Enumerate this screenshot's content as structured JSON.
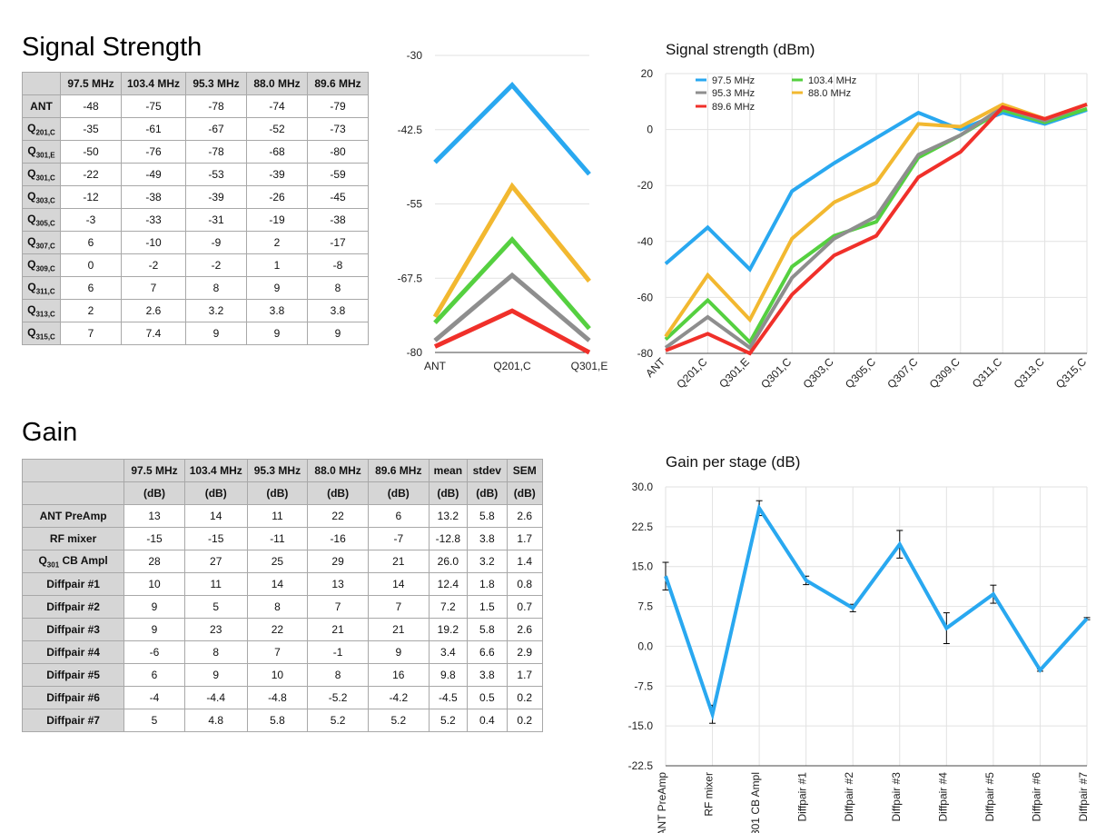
{
  "signal": {
    "title": "Signal Strength",
    "columns": [
      "97.5 MHz",
      "103.4 MHz",
      "95.3 MHz",
      "88.0 MHz",
      "89.6 MHz"
    ],
    "rows": [
      {
        "base": "ANT",
        "sub": "",
        "values": [
          "-48",
          "-75",
          "-78",
          "-74",
          "-79"
        ]
      },
      {
        "base": "Q",
        "sub": "201,C",
        "values": [
          "-35",
          "-61",
          "-67",
          "-52",
          "-73"
        ]
      },
      {
        "base": "Q",
        "sub": "301,E",
        "values": [
          "-50",
          "-76",
          "-78",
          "-68",
          "-80"
        ]
      },
      {
        "base": "Q",
        "sub": "301,C",
        "values": [
          "-22",
          "-49",
          "-53",
          "-39",
          "-59"
        ]
      },
      {
        "base": "Q",
        "sub": "303,C",
        "values": [
          "-12",
          "-38",
          "-39",
          "-26",
          "-45"
        ]
      },
      {
        "base": "Q",
        "sub": "305,C",
        "values": [
          "-3",
          "-33",
          "-31",
          "-19",
          "-38"
        ]
      },
      {
        "base": "Q",
        "sub": "307,C",
        "values": [
          "6",
          "-10",
          "-9",
          "2",
          "-17"
        ]
      },
      {
        "base": "Q",
        "sub": "309,C",
        "values": [
          "0",
          "-2",
          "-2",
          "1",
          "-8"
        ]
      },
      {
        "base": "Q",
        "sub": "311,C",
        "values": [
          "6",
          "7",
          "8",
          "9",
          "8"
        ]
      },
      {
        "base": "Q",
        "sub": "313,C",
        "values": [
          "2",
          "2.6",
          "3.2",
          "3.8",
          "3.8"
        ]
      },
      {
        "base": "Q",
        "sub": "315,C",
        "values": [
          "7",
          "7.4",
          "9",
          "9",
          "9"
        ]
      }
    ]
  },
  "gain": {
    "title": "Gain",
    "columns": [
      "97.5 MHz",
      "103.4 MHz",
      "95.3 MHz",
      "88.0 MHz",
      "89.6 MHz",
      "mean",
      "stdev",
      "SEM"
    ],
    "units": [
      "(dB)",
      "(dB)",
      "(dB)",
      "(dB)",
      "(dB)",
      "(dB)",
      "(dB)",
      "(dB)"
    ],
    "rows": [
      {
        "base": "ANT PreAmp",
        "sub": "",
        "suffix": "",
        "values": [
          "13",
          "14",
          "11",
          "22",
          "6",
          "13.2",
          "5.8",
          "2.6"
        ]
      },
      {
        "base": "RF mixer",
        "sub": "",
        "suffix": "",
        "values": [
          "-15",
          "-15",
          "-11",
          "-16",
          "-7",
          "-12.8",
          "3.8",
          "1.7"
        ]
      },
      {
        "base": "Q",
        "sub": "301",
        "suffix": " CB Ampl",
        "values": [
          "28",
          "27",
          "25",
          "29",
          "21",
          "26.0",
          "3.2",
          "1.4"
        ]
      },
      {
        "base": "Diffpair #1",
        "sub": "",
        "suffix": "",
        "values": [
          "10",
          "11",
          "14",
          "13",
          "14",
          "12.4",
          "1.8",
          "0.8"
        ]
      },
      {
        "base": "Diffpair #2",
        "sub": "",
        "suffix": "",
        "values": [
          "9",
          "5",
          "8",
          "7",
          "7",
          "7.2",
          "1.5",
          "0.7"
        ]
      },
      {
        "base": "Diffpair #3",
        "sub": "",
        "suffix": "",
        "values": [
          "9",
          "23",
          "22",
          "21",
          "21",
          "19.2",
          "5.8",
          "2.6"
        ]
      },
      {
        "base": "Diffpair #4",
        "sub": "",
        "suffix": "",
        "values": [
          "-6",
          "8",
          "7",
          "-1",
          "9",
          "3.4",
          "6.6",
          "2.9"
        ]
      },
      {
        "base": "Diffpair #5",
        "sub": "",
        "suffix": "",
        "values": [
          "6",
          "9",
          "10",
          "8",
          "16",
          "9.8",
          "3.8",
          "1.7"
        ]
      },
      {
        "base": "Diffpair #6",
        "sub": "",
        "suffix": "",
        "values": [
          "-4",
          "-4.4",
          "-4.8",
          "-5.2",
          "-4.2",
          "-4.5",
          "0.5",
          "0.2"
        ]
      },
      {
        "base": "Diffpair #7",
        "sub": "",
        "suffix": "",
        "values": [
          "5",
          "4.8",
          "5.8",
          "5.2",
          "5.2",
          "5.2",
          "0.4",
          "0.2"
        ]
      }
    ]
  },
  "chart_data": [
    {
      "type": "line",
      "title": "",
      "xlabel": "",
      "ylabel": "",
      "categories": [
        "ANT",
        "Q201,C",
        "Q301,E"
      ],
      "ylim": [
        -80,
        -30
      ],
      "yticks": [
        "-30",
        "-42.5",
        "-55",
        "-67.5",
        "-80"
      ],
      "grid": true,
      "legend": "none",
      "series": [
        {
          "color": "#29a8f0",
          "values": [
            -48,
            -35,
            -50
          ]
        },
        {
          "color": "#f2b830",
          "values": [
            -74,
            -52,
            -68
          ]
        },
        {
          "color": "#55d040",
          "values": [
            -75,
            -61,
            -76
          ]
        },
        {
          "color": "#8e8e8e",
          "values": [
            -78,
            -67,
            -78
          ]
        },
        {
          "color": "#f0302a",
          "values": [
            -79,
            -73,
            -80
          ]
        }
      ]
    },
    {
      "type": "line",
      "title": "Signal strength (dBm)",
      "xlabel": "",
      "ylabel": "",
      "categories": [
        "ANT",
        "Q201,C",
        "Q301,E",
        "Q301,C",
        "Q303,C",
        "Q305,C",
        "Q307,C",
        "Q309,C",
        "Q311,C",
        "Q313,C",
        "Q315,C"
      ],
      "ylim": [
        -80,
        20
      ],
      "yticks": [
        "20",
        "0",
        "-20",
        "-40",
        "-60",
        "-80"
      ],
      "grid": true,
      "legend": "top-left",
      "series": [
        {
          "name": "97.5 MHz",
          "color": "#29a8f0",
          "values": [
            -48,
            -35,
            -50,
            -22,
            -12,
            -3,
            6,
            0,
            6,
            2,
            7
          ]
        },
        {
          "name": "103.4 MHz",
          "color": "#55d040",
          "values": [
            -75,
            -61,
            -76,
            -49,
            -38,
            -33,
            -10,
            -2,
            7,
            2.6,
            7.4
          ]
        },
        {
          "name": "95.3 MHz",
          "color": "#8e8e8e",
          "values": [
            -78,
            -67,
            -78,
            -53,
            -39,
            -31,
            -9,
            -2,
            8,
            3.2,
            9
          ]
        },
        {
          "name": "88.0 MHz",
          "color": "#f2b830",
          "values": [
            -74,
            -52,
            -68,
            -39,
            -26,
            -19,
            2,
            1,
            9,
            3.8,
            9
          ]
        },
        {
          "name": "89.6 MHz",
          "color": "#f0302a",
          "values": [
            -79,
            -73,
            -80,
            -59,
            -45,
            -38,
            -17,
            -8,
            8,
            3.8,
            9
          ]
        }
      ]
    },
    {
      "type": "line",
      "title": "Gain per stage (dB)",
      "xlabel": "",
      "ylabel": "",
      "categories": [
        "ANT PreAmp",
        "RF mixer",
        "Q301 CB Ampl",
        "Diffpair #1",
        "Diffpair #2",
        "Diffpair #3",
        "Diffpair #4",
        "Diffpair #5",
        "Diffpair #6",
        "Diffpair #7"
      ],
      "ylim": [
        -22.5,
        30
      ],
      "yticks": [
        "30.0",
        "22.5",
        "15.0",
        "7.5",
        "0.0",
        "-7.5",
        "-15.0",
        "-22.5"
      ],
      "grid": true,
      "legend": "none",
      "series": [
        {
          "color": "#29a8f0",
          "values": [
            13.2,
            -12.8,
            26.0,
            12.4,
            7.2,
            19.2,
            3.4,
            9.8,
            -4.5,
            5.2
          ],
          "error": [
            2.6,
            1.7,
            1.4,
            0.8,
            0.7,
            2.6,
            2.9,
            1.7,
            0.2,
            0.2
          ]
        }
      ]
    }
  ]
}
